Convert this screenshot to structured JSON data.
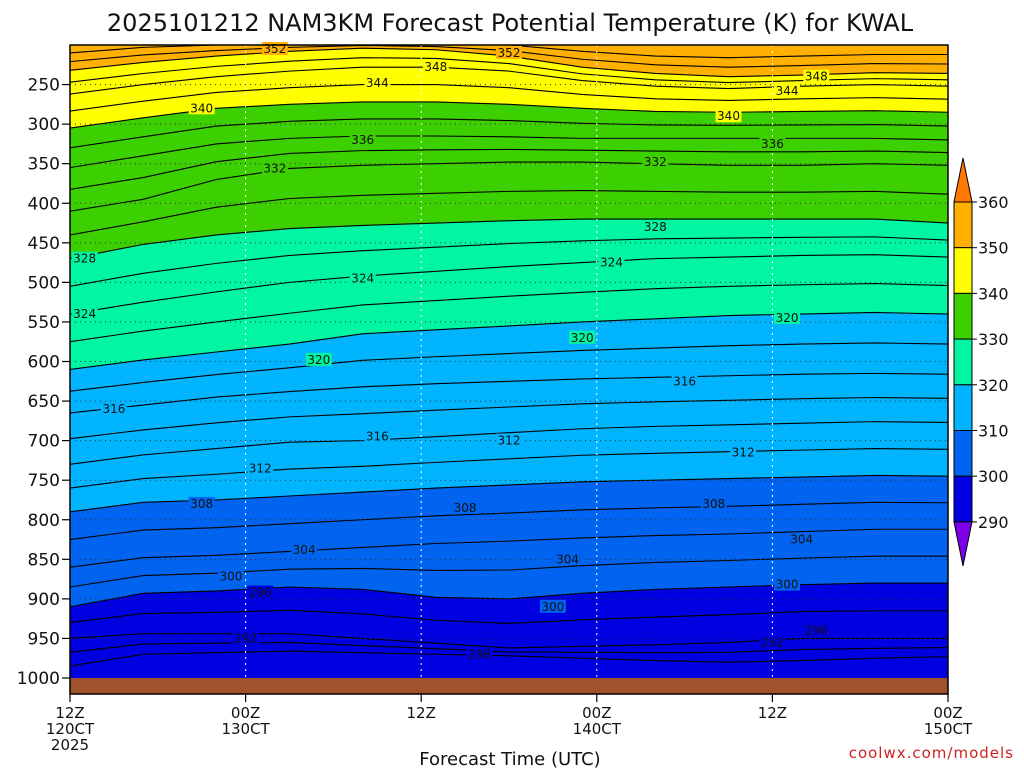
{
  "chart_data": {
    "type": "heatmap",
    "title": "2025101212 NAM3KM Forecast Potential Temperature (K) for KWAL",
    "xlabel": "Forecast Time (UTC)",
    "ylabel": "",
    "x_ticks": [
      {
        "hour": 0,
        "line1": "12Z",
        "line2": "120CT",
        "line3": "2025"
      },
      {
        "hour": 12,
        "line1": "00Z",
        "line2": "130CT",
        "line3": ""
      },
      {
        "hour": 24,
        "line1": "12Z",
        "line2": "",
        "line3": ""
      },
      {
        "hour": 36,
        "line1": "00Z",
        "line2": "140CT",
        "line3": ""
      },
      {
        "hour": 48,
        "line1": "12Z",
        "line2": "",
        "line3": ""
      },
      {
        "hour": 60,
        "line1": "00Z",
        "line2": "150CT",
        "line3": ""
      }
    ],
    "xlim": [
      0,
      60
    ],
    "y_ticks": [
      250,
      300,
      350,
      400,
      450,
      500,
      550,
      600,
      650,
      700,
      750,
      800,
      850,
      900,
      950,
      1000
    ],
    "ylim": [
      200,
      1000
    ],
    "colorbar": {
      "levels": [
        290,
        300,
        310,
        320,
        330,
        340,
        350,
        360
      ],
      "colors": [
        "#7d00e8",
        "#0000e0",
        "#0064f0",
        "#00b4ff",
        "#00f6a0",
        "#3cd000",
        "#ffff00",
        "#ffb000",
        "#ff7800"
      ]
    },
    "contour_interval": 4,
    "isentropes": [
      {
        "theta": 292,
        "pressures": [
          985,
          970,
          968,
          966,
          968,
          970,
          972,
          975,
          978,
          980,
          978,
          975,
          973
        ]
      },
      {
        "theta": 296,
        "pressures": [
          950,
          944,
          944,
          944,
          950,
          956,
          962,
          960,
          958,
          955,
          950,
          950,
          950
        ]
      },
      {
        "theta": 300,
        "pressures": [
          910,
          893,
          890,
          885,
          888,
          898,
          900,
          893,
          888,
          885,
          882,
          880,
          880
        ]
      },
      {
        "theta": 304,
        "pressures": [
          860,
          848,
          845,
          840,
          835,
          830,
          827,
          823,
          820,
          818,
          815,
          812,
          812
        ]
      },
      {
        "theta": 308,
        "pressures": [
          790,
          778,
          775,
          770,
          765,
          760,
          756,
          752,
          750,
          748,
          746,
          744,
          745
        ]
      },
      {
        "theta": 312,
        "pressures": [
          730,
          718,
          710,
          702,
          700,
          695,
          690,
          685,
          682,
          680,
          678,
          676,
          677
        ]
      },
      {
        "theta": 316,
        "pressures": [
          665,
          655,
          645,
          638,
          632,
          628,
          625,
          622,
          620,
          618,
          616,
          615,
          616
        ]
      },
      {
        "theta": 320,
        "pressures": [
          610,
          598,
          588,
          578,
          565,
          560,
          555,
          550,
          546,
          542,
          540,
          538,
          540
        ]
      },
      {
        "theta": 324,
        "pressures": [
          540,
          525,
          512,
          500,
          492,
          486,
          480,
          475,
          470,
          468,
          466,
          465,
          468
        ]
      },
      {
        "theta": 328,
        "pressures": [
          470,
          452,
          440,
          432,
          428,
          425,
          422,
          420,
          420,
          420,
          420,
          420,
          425
        ]
      },
      {
        "theta": 332,
        "pressures": [
          410,
          395,
          370,
          356,
          352,
          350,
          348,
          348,
          350,
          352,
          352,
          350,
          352
        ]
      },
      {
        "theta": 336,
        "pressures": [
          355,
          340,
          325,
          318,
          315,
          315,
          316,
          318,
          318,
          318,
          318,
          318,
          320
        ]
      },
      {
        "theta": 340,
        "pressures": [
          305,
          292,
          280,
          275,
          272,
          272,
          275,
          280,
          284,
          285,
          284,
          283,
          285
        ]
      },
      {
        "theta": 344,
        "pressures": [
          262,
          250,
          240,
          233,
          228,
          228,
          233,
          245,
          252,
          255,
          252,
          250,
          252
        ]
      },
      {
        "theta": 348,
        "pressures": [
          232,
          222,
          214,
          208,
          204,
          206,
          214,
          228,
          236,
          240,
          238,
          235,
          236
        ]
      },
      {
        "theta": 352,
        "pressures": [
          210,
          203,
          200,
          198,
          197,
          198,
          200,
          208,
          214,
          216,
          214,
          212,
          212
        ]
      }
    ],
    "contour_labels": [
      {
        "text": "352",
        "hour": 14,
        "p": 205
      },
      {
        "text": "352",
        "hour": 30,
        "p": 210
      },
      {
        "text": "348",
        "hour": 25,
        "p": 228
      },
      {
        "text": "348",
        "hour": 51,
        "p": 240
      },
      {
        "text": "344",
        "hour": 21,
        "p": 248
      },
      {
        "text": "344",
        "hour": 49,
        "p": 258
      },
      {
        "text": "340",
        "hour": 9,
        "p": 280
      },
      {
        "text": "340",
        "hour": 45,
        "p": 290
      },
      {
        "text": "336",
        "hour": 20,
        "p": 320
      },
      {
        "text": "336",
        "hour": 48,
        "p": 325
      },
      {
        "text": "332",
        "hour": 14,
        "p": 356
      },
      {
        "text": "332",
        "hour": 40,
        "p": 348
      },
      {
        "text": "328",
        "hour": 40,
        "p": 430
      },
      {
        "text": "328",
        "hour": 1,
        "p": 470
      },
      {
        "text": "324",
        "hour": 37,
        "p": 475
      },
      {
        "text": "324",
        "hour": 20,
        "p": 495
      },
      {
        "text": "324",
        "hour": 1,
        "p": 540
      },
      {
        "text": "320",
        "hour": 35,
        "p": 570
      },
      {
        "text": "320",
        "hour": 49,
        "p": 545
      },
      {
        "text": "320",
        "hour": 17,
        "p": 598
      },
      {
        "text": "316",
        "hour": 3,
        "p": 660
      },
      {
        "text": "316",
        "hour": 42,
        "p": 625
      },
      {
        "text": "316",
        "hour": 21,
        "p": 695
      },
      {
        "text": "312",
        "hour": 30,
        "p": 700
      },
      {
        "text": "312",
        "hour": 46,
        "p": 715
      },
      {
        "text": "312",
        "hour": 13,
        "p": 735
      },
      {
        "text": "308",
        "hour": 9,
        "p": 780
      },
      {
        "text": "308",
        "hour": 27,
        "p": 785
      },
      {
        "text": "308",
        "hour": 44,
        "p": 780
      },
      {
        "text": "304",
        "hour": 16,
        "p": 838
      },
      {
        "text": "304",
        "hour": 34,
        "p": 850
      },
      {
        "text": "304",
        "hour": 50,
        "p": 825
      },
      {
        "text": "300",
        "hour": 11,
        "p": 872
      },
      {
        "text": "300",
        "hour": 33,
        "p": 910
      },
      {
        "text": "300",
        "hour": 49,
        "p": 882
      },
      {
        "text": "296",
        "hour": 13,
        "p": 892
      },
      {
        "text": "296",
        "hour": 28,
        "p": 970
      },
      {
        "text": "296",
        "hour": 51,
        "p": 940
      },
      {
        "text": "292",
        "hour": 12,
        "p": 950
      },
      {
        "text": "292",
        "hour": 48,
        "p": 955
      }
    ]
  },
  "credit": "coolwx.com/models"
}
